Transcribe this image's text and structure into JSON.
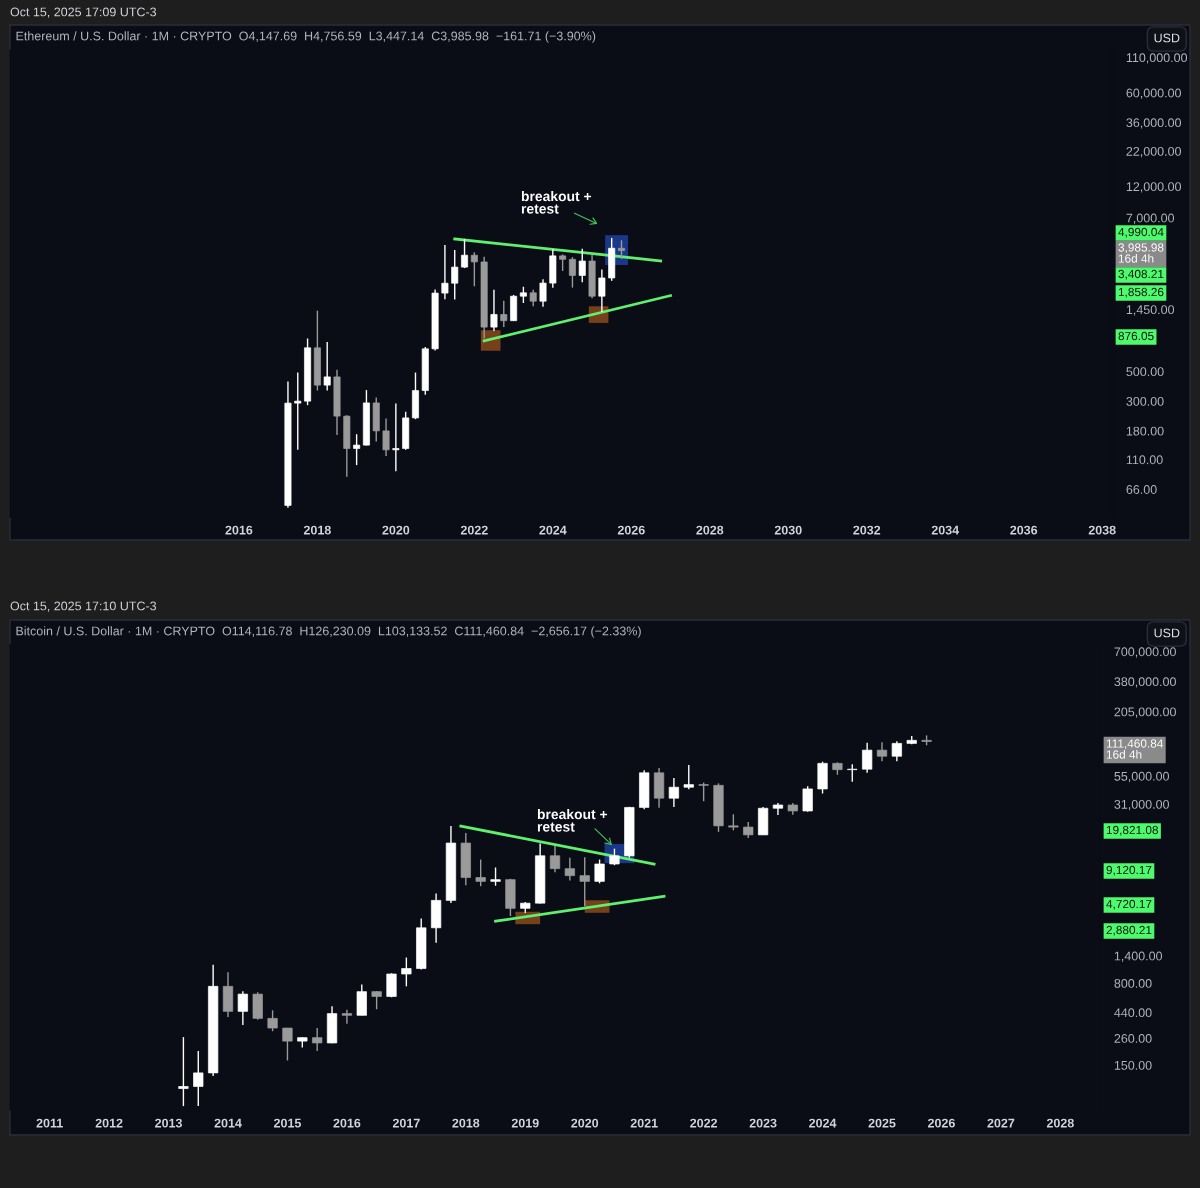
{
  "chart_data": [
    {
      "type": "candlestick",
      "title": "Ethereum / U.S. Dollar · 1M · CRYPTO  O4,147.69  H4,756.59  L3,447.14  C3,985.98  −161.71 (−3.90%)",
      "x": [
        "2017-04",
        "2017-07",
        "2017-10",
        "2018-01",
        "2018-04",
        "2018-07",
        "2018-10",
        "2019-01",
        "2019-04",
        "2019-07",
        "2019-10",
        "2020-01",
        "2020-04",
        "2020-07",
        "2020-10",
        "2021-01",
        "2021-04",
        "2021-07",
        "2021-10",
        "2022-01",
        "2022-04",
        "2022-07",
        "2022-10",
        "2023-01",
        "2023-04",
        "2023-07",
        "2023-10",
        "2024-01",
        "2024-04",
        "2024-07",
        "2024-10",
        "2025-01",
        "2025-04",
        "2025-07",
        "2025-10"
      ],
      "ohlc": [
        [
          50,
          420,
          48,
          290
        ],
        [
          290,
          490,
          130,
          300
        ],
        [
          300,
          880,
          280,
          750
        ],
        [
          750,
          1420,
          360,
          395
        ],
        [
          395,
          830,
          360,
          455
        ],
        [
          455,
          515,
          168,
          232
        ],
        [
          232,
          235,
          82,
          133
        ],
        [
          133,
          170,
          100,
          141
        ],
        [
          141,
          363,
          140,
          291
        ],
        [
          291,
          320,
          150,
          180
        ],
        [
          180,
          223,
          117,
          130
        ],
        [
          130,
          288,
          90,
          133
        ],
        [
          133,
          250,
          130,
          225
        ],
        [
          225,
          490,
          220,
          360
        ],
        [
          360,
          760,
          335,
          737
        ],
        [
          737,
          2040,
          715,
          1920
        ],
        [
          1920,
          4380,
          1730,
          2275
        ],
        [
          2275,
          4030,
          1720,
          3000
        ],
        [
          3000,
          4870,
          2950,
          3680
        ],
        [
          3680,
          3870,
          2160,
          3280
        ],
        [
          3280,
          3580,
          880,
          1070
        ],
        [
          1070,
          2030,
          1000,
          1330
        ],
        [
          1330,
          1680,
          1070,
          1195
        ],
        [
          1195,
          1860,
          1190,
          1820
        ],
        [
          1820,
          2140,
          1620,
          1930
        ],
        [
          1930,
          2030,
          1530,
          1670
        ],
        [
          1670,
          2440,
          1520,
          2280
        ],
        [
          2280,
          4090,
          2100,
          3640
        ],
        [
          3640,
          3730,
          2810,
          3430
        ],
        [
          3430,
          3560,
          2110,
          2600
        ],
        [
          2600,
          4110,
          2310,
          3330
        ],
        [
          3330,
          3740,
          1760,
          1820
        ],
        [
          1820,
          2880,
          1390,
          2490
        ],
        [
          2490,
          4950,
          2370,
          4150
        ],
        [
          4147.69,
          4756.59,
          3447.14,
          3985.98
        ]
      ],
      "series": [
        {
          "type": "line",
          "color": "#5ef06e",
          "x": [
            "2021-07",
            "2026-10"
          ],
          "values": [
            4870,
            3340
          ]
        },
        {
          "type": "line",
          "color": "#5ef06e",
          "x": [
            "2022-04",
            "2027-01"
          ],
          "values": [
            845,
            1840
          ]
        }
      ],
      "log": true,
      "grid": false,
      "xlim": [
        "2010-03",
        "2038-04"
      ],
      "xticks": [
        "2016",
        "2018",
        "2020",
        "2022",
        "2024",
        "2026",
        "2028",
        "2030",
        "2032",
        "2034",
        "2036",
        "2038"
      ],
      "ylim": [
        41,
        125000
      ],
      "yticks": [
        {
          "value": 66,
          "label": "66.00"
        },
        {
          "value": 110,
          "label": "110.00"
        },
        {
          "value": 180,
          "label": "180.00"
        },
        {
          "value": 300,
          "label": "300.00"
        },
        {
          "value": 500,
          "label": "500.00"
        },
        {
          "value": 1450,
          "label": "1,450.00"
        },
        {
          "value": 7000,
          "label": "7,000.00"
        },
        {
          "value": 12000,
          "label": "12,000.00"
        },
        {
          "value": 22000,
          "label": "22,000.00"
        },
        {
          "value": 36000,
          "label": "36,000.00"
        },
        {
          "value": 60000,
          "label": "60,000.00"
        },
        {
          "value": 110000,
          "label": "110,000.00"
        }
      ],
      "annotations": [
        "Oct 15, 2025 17:09 UTC-3",
        "USD",
        "breakout +\nretest",
        "4,990.04",
        "3,985.98\n16d 4h",
        "3,408.21",
        "1,858.26",
        "876.05"
      ]
    },
    {
      "type": "candlestick",
      "title": "Bitcoin / U.S. Dollar · 1M · CRYPTO  O114,116.78  H126,230.09  L103,133.52  C111,460.84  −2,656.17 (−2.33%)",
      "x": [
        "2013-04",
        "2013-07",
        "2013-10",
        "2014-01",
        "2014-04",
        "2014-07",
        "2014-10",
        "2015-01",
        "2015-04",
        "2015-07",
        "2015-10",
        "2016-01",
        "2016-04",
        "2016-07",
        "2016-10",
        "2017-01",
        "2017-04",
        "2017-07",
        "2017-10",
        "2018-01",
        "2018-04",
        "2018-07",
        "2018-10",
        "2019-01",
        "2019-04",
        "2019-07",
        "2019-10",
        "2020-01",
        "2020-04",
        "2020-07",
        "2020-10",
        "2021-01",
        "2021-04",
        "2021-07",
        "2021-10",
        "2022-01",
        "2022-04",
        "2022-07",
        "2022-10",
        "2023-01",
        "2023-04",
        "2023-07",
        "2023-10",
        "2024-01",
        "2024-04",
        "2024-07",
        "2024-10",
        "2025-01",
        "2025-04",
        "2025-07",
        "2025-10"
      ],
      "ohlc": [
        [
          93,
          266,
          65,
          97
        ],
        [
          97,
          200,
          65,
          128
        ],
        [
          128,
          1163,
          120,
          750
        ],
        [
          750,
          1000,
          400,
          450
        ],
        [
          450,
          680,
          340,
          640
        ],
        [
          640,
          665,
          380,
          390
        ],
        [
          390,
          460,
          300,
          320
        ],
        [
          320,
          320,
          165,
          245
        ],
        [
          245,
          265,
          215,
          263
        ],
        [
          263,
          320,
          200,
          236
        ],
        [
          236,
          500,
          235,
          430
        ],
        [
          430,
          465,
          350,
          415
        ],
        [
          415,
          780,
          415,
          673
        ],
        [
          673,
          680,
          470,
          610
        ],
        [
          610,
          980,
          600,
          965
        ],
        [
          965,
          1350,
          750,
          1080
        ],
        [
          1080,
          3000,
          1060,
          2480
        ],
        [
          2480,
          5000,
          1830,
          4340
        ],
        [
          4340,
          19800,
          4110,
          14000
        ],
        [
          14000,
          17200,
          5900,
          6930
        ],
        [
          6930,
          9990,
          5800,
          6400
        ],
        [
          6400,
          8500,
          5860,
          6630
        ],
        [
          6630,
          6750,
          3150,
          3690
        ],
        [
          3690,
          4200,
          3350,
          4100
        ],
        [
          4100,
          13880,
          4080,
          10800
        ],
        [
          10800,
          13200,
          7700,
          8300
        ],
        [
          8300,
          10350,
          6500,
          7200
        ],
        [
          7200,
          10500,
          3850,
          6400
        ],
        [
          6400,
          10000,
          6150,
          9130
        ],
        [
          9130,
          12480,
          8900,
          10780
        ],
        [
          10780,
          29300,
          10380,
          28990
        ],
        [
          28990,
          61800,
          28000,
          58800
        ],
        [
          58800,
          64900,
          28800,
          35000
        ],
        [
          35000,
          52900,
          29300,
          43800
        ],
        [
          43800,
          69000,
          42000,
          46200
        ],
        [
          46200,
          48200,
          32900,
          45500
        ],
        [
          45500,
          47400,
          17600,
          19900
        ],
        [
          19900,
          25200,
          18150,
          19400
        ],
        [
          19400,
          21500,
          15500,
          16550
        ],
        [
          16550,
          29200,
          16500,
          28500
        ],
        [
          28500,
          31800,
          24800,
          30470
        ],
        [
          30470,
          31800,
          24900,
          26970
        ],
        [
          26970,
          44700,
          26550,
          42280
        ],
        [
          42280,
          73800,
          38500,
          71300
        ],
        [
          71300,
          72800,
          56500,
          62700
        ],
        [
          62700,
          70000,
          49000,
          63300
        ],
        [
          63300,
          108400,
          58900,
          93400
        ],
        [
          93400,
          109600,
          74400,
          82500
        ],
        [
          82500,
          111900,
          74500,
          107200
        ],
        [
          107200,
          124500,
          105300,
          114100
        ],
        [
          114116.78,
          126230.09,
          103133.52,
          111460.84
        ]
      ],
      "series": [
        {
          "type": "line",
          "color": "#5ef06e",
          "x": [
            "2017-12",
            "2021-03"
          ],
          "values": [
            19800,
            9100
          ]
        },
        {
          "type": "line",
          "color": "#5ef06e",
          "x": [
            "2018-07",
            "2021-05"
          ],
          "values": [
            2840,
            4710
          ]
        }
      ],
      "log": true,
      "grid": false,
      "xlim": [
        "2010-05",
        "2028-09"
      ],
      "xticks": [
        "2011",
        "2012",
        "2013",
        "2014",
        "2015",
        "2016",
        "2017",
        "2018",
        "2019",
        "2020",
        "2021",
        "2022",
        "2023",
        "2024",
        "2025",
        "2026",
        "2027",
        "2028"
      ],
      "ylim": [
        60,
        800000
      ],
      "yticks": [
        {
          "value": 150,
          "label": "150.00"
        },
        {
          "value": 260,
          "label": "260.00"
        },
        {
          "value": 440,
          "label": "440.00"
        },
        {
          "value": 800,
          "label": "800.00"
        },
        {
          "value": 1400,
          "label": "1,400.00"
        },
        {
          "value": 31000,
          "label": "31,000.00"
        },
        {
          "value": 55000,
          "label": "55,000.00"
        },
        {
          "value": 205000,
          "label": "205,000.00"
        },
        {
          "value": 380000,
          "label": "380,000.00"
        },
        {
          "value": 700000,
          "label": "700,000.00"
        }
      ],
      "annotations": [
        "Oct 15, 2025 17:10 UTC-3",
        "USD",
        "breakout +\nretest",
        "111,460.84\n16d 4h",
        "19,821.08",
        "9,120.17",
        "4,720.17",
        "2,880.21"
      ]
    }
  ]
}
